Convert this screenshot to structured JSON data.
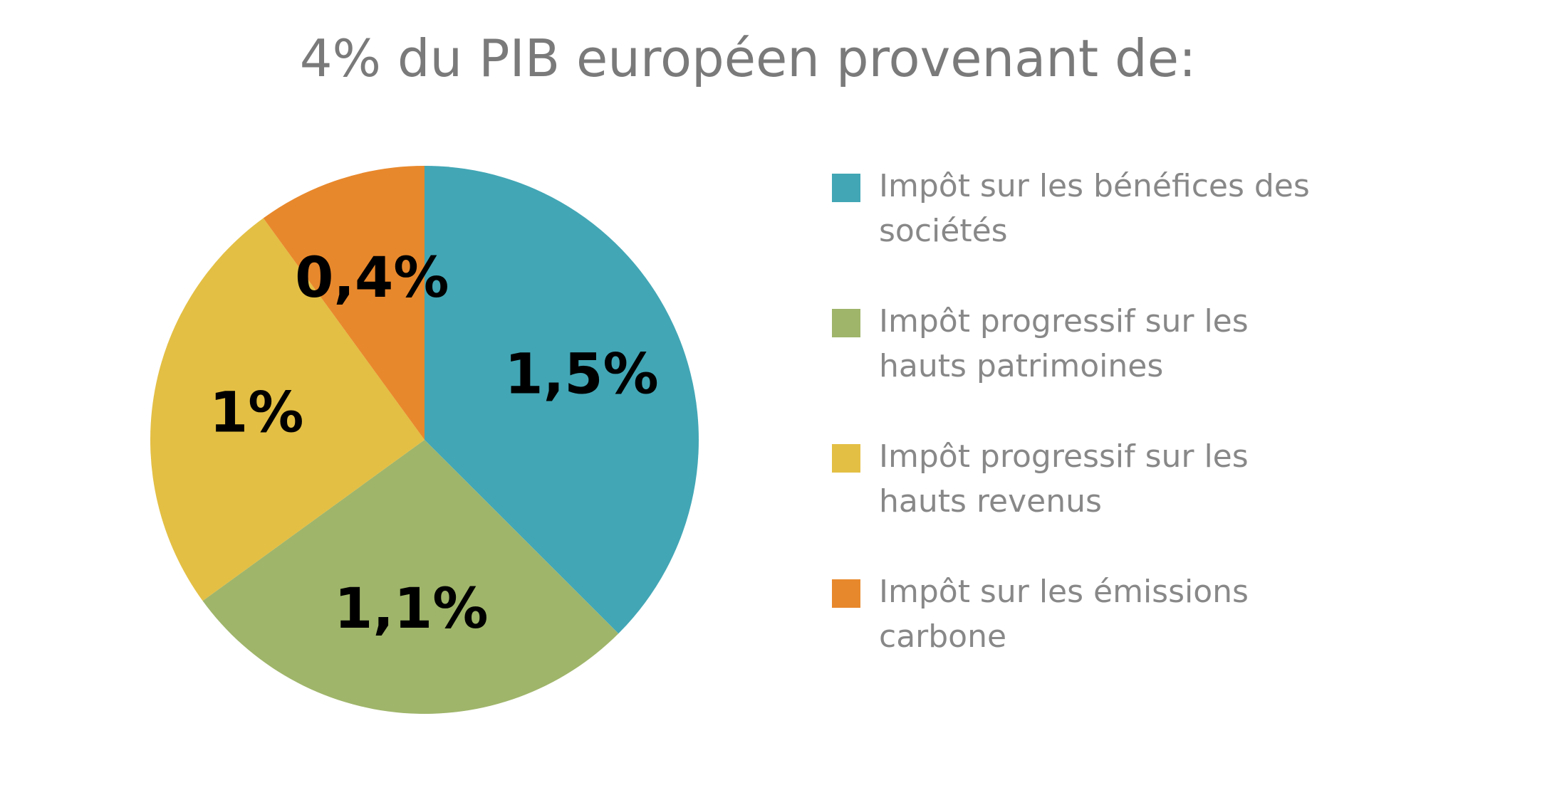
{
  "chart_data": {
    "type": "pie",
    "title": "4% du PIB européen provenant de:",
    "legend": "right",
    "slices": [
      {
        "name": "Impôt sur les bénéfices des sociétés",
        "value": 1.5,
        "label": "1,5%",
        "color": "#42a6b5"
      },
      {
        "name": "Impôt progressif sur les hauts patrimoines",
        "value": 1.1,
        "label": "1,1%",
        "color": "#9fb56a"
      },
      {
        "name": "Impôt progressif sur les hauts revenus",
        "value": 1.0,
        "label": "1%",
        "color": "#e3bf44"
      },
      {
        "name": "Impôt sur les émissions carbone",
        "value": 0.4,
        "label": "0,4%",
        "color": "#e8882c"
      }
    ]
  }
}
